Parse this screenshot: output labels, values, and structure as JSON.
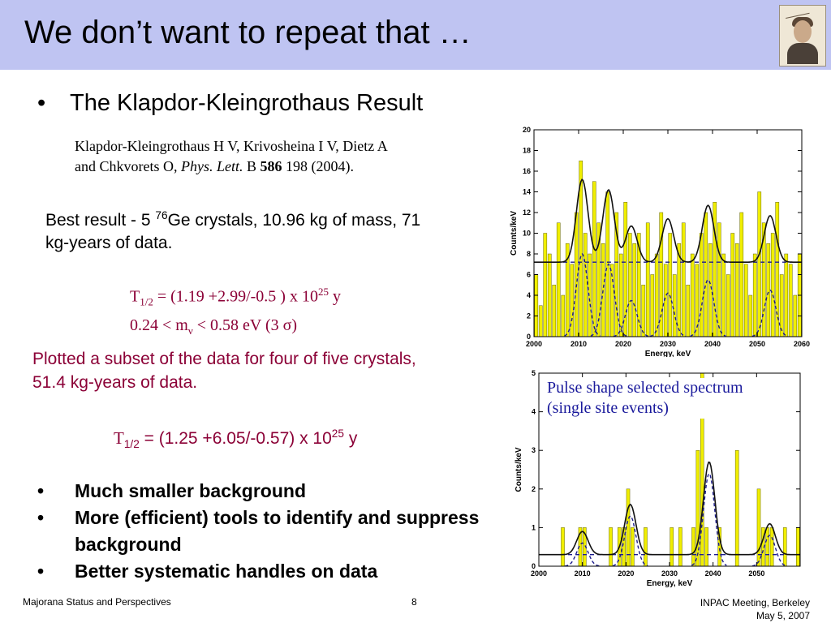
{
  "slide": {
    "title": "We don’t want to repeat that …",
    "bullet_main": "The Klapdor-Kleingrothaus Result",
    "bullet_char": "•",
    "ref_line1": "Klapdor-Kleingrothaus H V, Krivosheina I V, Dietz A",
    "ref_line2_a": "and Chkvorets O, ",
    "ref_line2_journal": "Phys. Lett.",
    "ref_line2_b": " B ",
    "ref_line2_vol": "586",
    "ref_line2_c": " 198 (2004).",
    "best_a": "Best result - 5 ",
    "best_sup": "76",
    "best_b": "Ge crystals, 10.96 kg of mass, 71 kg-years of data.",
    "f1_T": "T",
    "f1_sub": "1/2",
    "f1_a": " = (1.19 +2.99/-0.5 ) x 10",
    "f1_sup": "25",
    "f1_b": " y",
    "f1_line2_a": "0.24 < m",
    "f1_line2_sub": "ν",
    "f1_line2_b": " < 0.58 eV  (3 σ)",
    "plotted": "Plotted a subset of the data for four of five crystals, 51.4 kg-years of data.",
    "f2_T": "T",
    "f2_sub": "1/2",
    "f2_a": " = (1.25 +6.05/-0.57) x 10",
    "f2_sup": "25",
    "f2_b": " y",
    "bullets": [
      "Much smaller background",
      "More (efficient) tools to identify and suppress background",
      "Better systematic handles on data"
    ],
    "pulse_label_1": "Pulse shape selected spectrum",
    "pulse_label_2": "(single site events)"
  },
  "footer": {
    "left": "Majorana  Status and Perspectives",
    "page": "8",
    "right_1": "INPAC Meeting, Berkeley",
    "right_2": "May 5, 2007"
  },
  "colors": {
    "title_band": "#bfc4f2",
    "accent_text": "#8b0036",
    "bar_fill": "#f0ee00",
    "pulse_label": "#1a1a9c",
    "dashed_line": "#1c1c8c"
  },
  "portrait_icon": "portrait-photo",
  "chart_data": [
    {
      "type": "bar",
      "xlabel": "Energy, keV",
      "ylabel": "Counts/keV",
      "xlim": [
        2000,
        2060
      ],
      "ylim": [
        0,
        20
      ],
      "xticks": [
        "2000",
        "2010",
        "2020",
        "2030",
        "2040",
        "2050",
        "2060"
      ],
      "yticks": [
        "0",
        "2",
        "4",
        "6",
        "8",
        "10",
        "12",
        "14",
        "16",
        "18",
        "20"
      ],
      "bin_width": 1,
      "x": [
        2000,
        2001,
        2002,
        2003,
        2004,
        2005,
        2006,
        2007,
        2008,
        2009,
        2010,
        2011,
        2012,
        2013,
        2014,
        2015,
        2016,
        2017,
        2018,
        2019,
        2020,
        2021,
        2022,
        2023,
        2024,
        2025,
        2026,
        2027,
        2028,
        2029,
        2030,
        2031,
        2032,
        2033,
        2034,
        2035,
        2036,
        2037,
        2038,
        2039,
        2040,
        2041,
        2042,
        2043,
        2044,
        2045,
        2046,
        2047,
        2048,
        2049,
        2050,
        2051,
        2052,
        2053,
        2054,
        2055,
        2056,
        2057,
        2058,
        2059
      ],
      "values": [
        6,
        3,
        10,
        8,
        5,
        11,
        4,
        9,
        7,
        12,
        17,
        10,
        8,
        15,
        11,
        9,
        14,
        7,
        12,
        8,
        13,
        10,
        9,
        10,
        5,
        11,
        6,
        8,
        12,
        7,
        10,
        6,
        9,
        11,
        5,
        8,
        7,
        10,
        12,
        9,
        13,
        11,
        8,
        6,
        10,
        9,
        12,
        7,
        4,
        8,
        14,
        11,
        9,
        10,
        13,
        6,
        8,
        7,
        4,
        8
      ],
      "fit_mean_level": 7.2,
      "peaks_keV": [
        2010.8,
        2016.7,
        2021.8,
        2030.0,
        2039.0,
        2052.9
      ],
      "peak_amplitudes": [
        8.0,
        7.0,
        3.5,
        4.2,
        5.5,
        4.5
      ],
      "grid": false
    },
    {
      "type": "bar",
      "xlabel": "Energy, keV",
      "ylabel": "Counts/keV",
      "xlim": [
        2000,
        2060
      ],
      "ylim": [
        0,
        5
      ],
      "xticks": [
        "2000",
        "2010",
        "2020",
        "2030",
        "2040",
        "2050"
      ],
      "yticks": [
        "0",
        "1",
        "2",
        "3",
        "4",
        "5"
      ],
      "bin_width": 1,
      "x": [
        2000,
        2001,
        2002,
        2003,
        2004,
        2005,
        2006,
        2007,
        2008,
        2009,
        2010,
        2011,
        2012,
        2013,
        2014,
        2015,
        2016,
        2017,
        2018,
        2019,
        2020,
        2021,
        2022,
        2023,
        2024,
        2025,
        2026,
        2027,
        2028,
        2029,
        2030,
        2031,
        2032,
        2033,
        2034,
        2035,
        2036,
        2037,
        2038,
        2039,
        2040,
        2041,
        2042,
        2043,
        2044,
        2045,
        2046,
        2047,
        2048,
        2049,
        2050,
        2051,
        2052,
        2053,
        2054,
        2055,
        2056,
        2057,
        2058,
        2059
      ],
      "values": [
        0,
        0,
        0,
        0,
        0,
        1,
        0,
        0,
        0,
        1,
        1,
        0,
        0,
        0,
        0,
        0,
        1,
        0,
        1,
        1,
        2,
        1,
        0,
        0,
        1,
        0,
        0,
        0,
        0,
        0,
        1,
        0,
        1,
        0,
        0,
        1,
        3,
        5,
        1,
        0,
        0,
        1,
        0,
        0,
        0,
        3,
        0,
        0,
        0,
        0,
        2,
        1,
        1,
        1,
        0,
        0,
        1,
        0,
        0,
        1
      ],
      "fit_mean_level": 0.3,
      "peaks_keV": [
        2010.0,
        2021.0,
        2039.1,
        2053.0
      ],
      "peak_amplitudes": [
        0.6,
        1.3,
        2.4,
        0.8
      ],
      "grid": false
    }
  ]
}
